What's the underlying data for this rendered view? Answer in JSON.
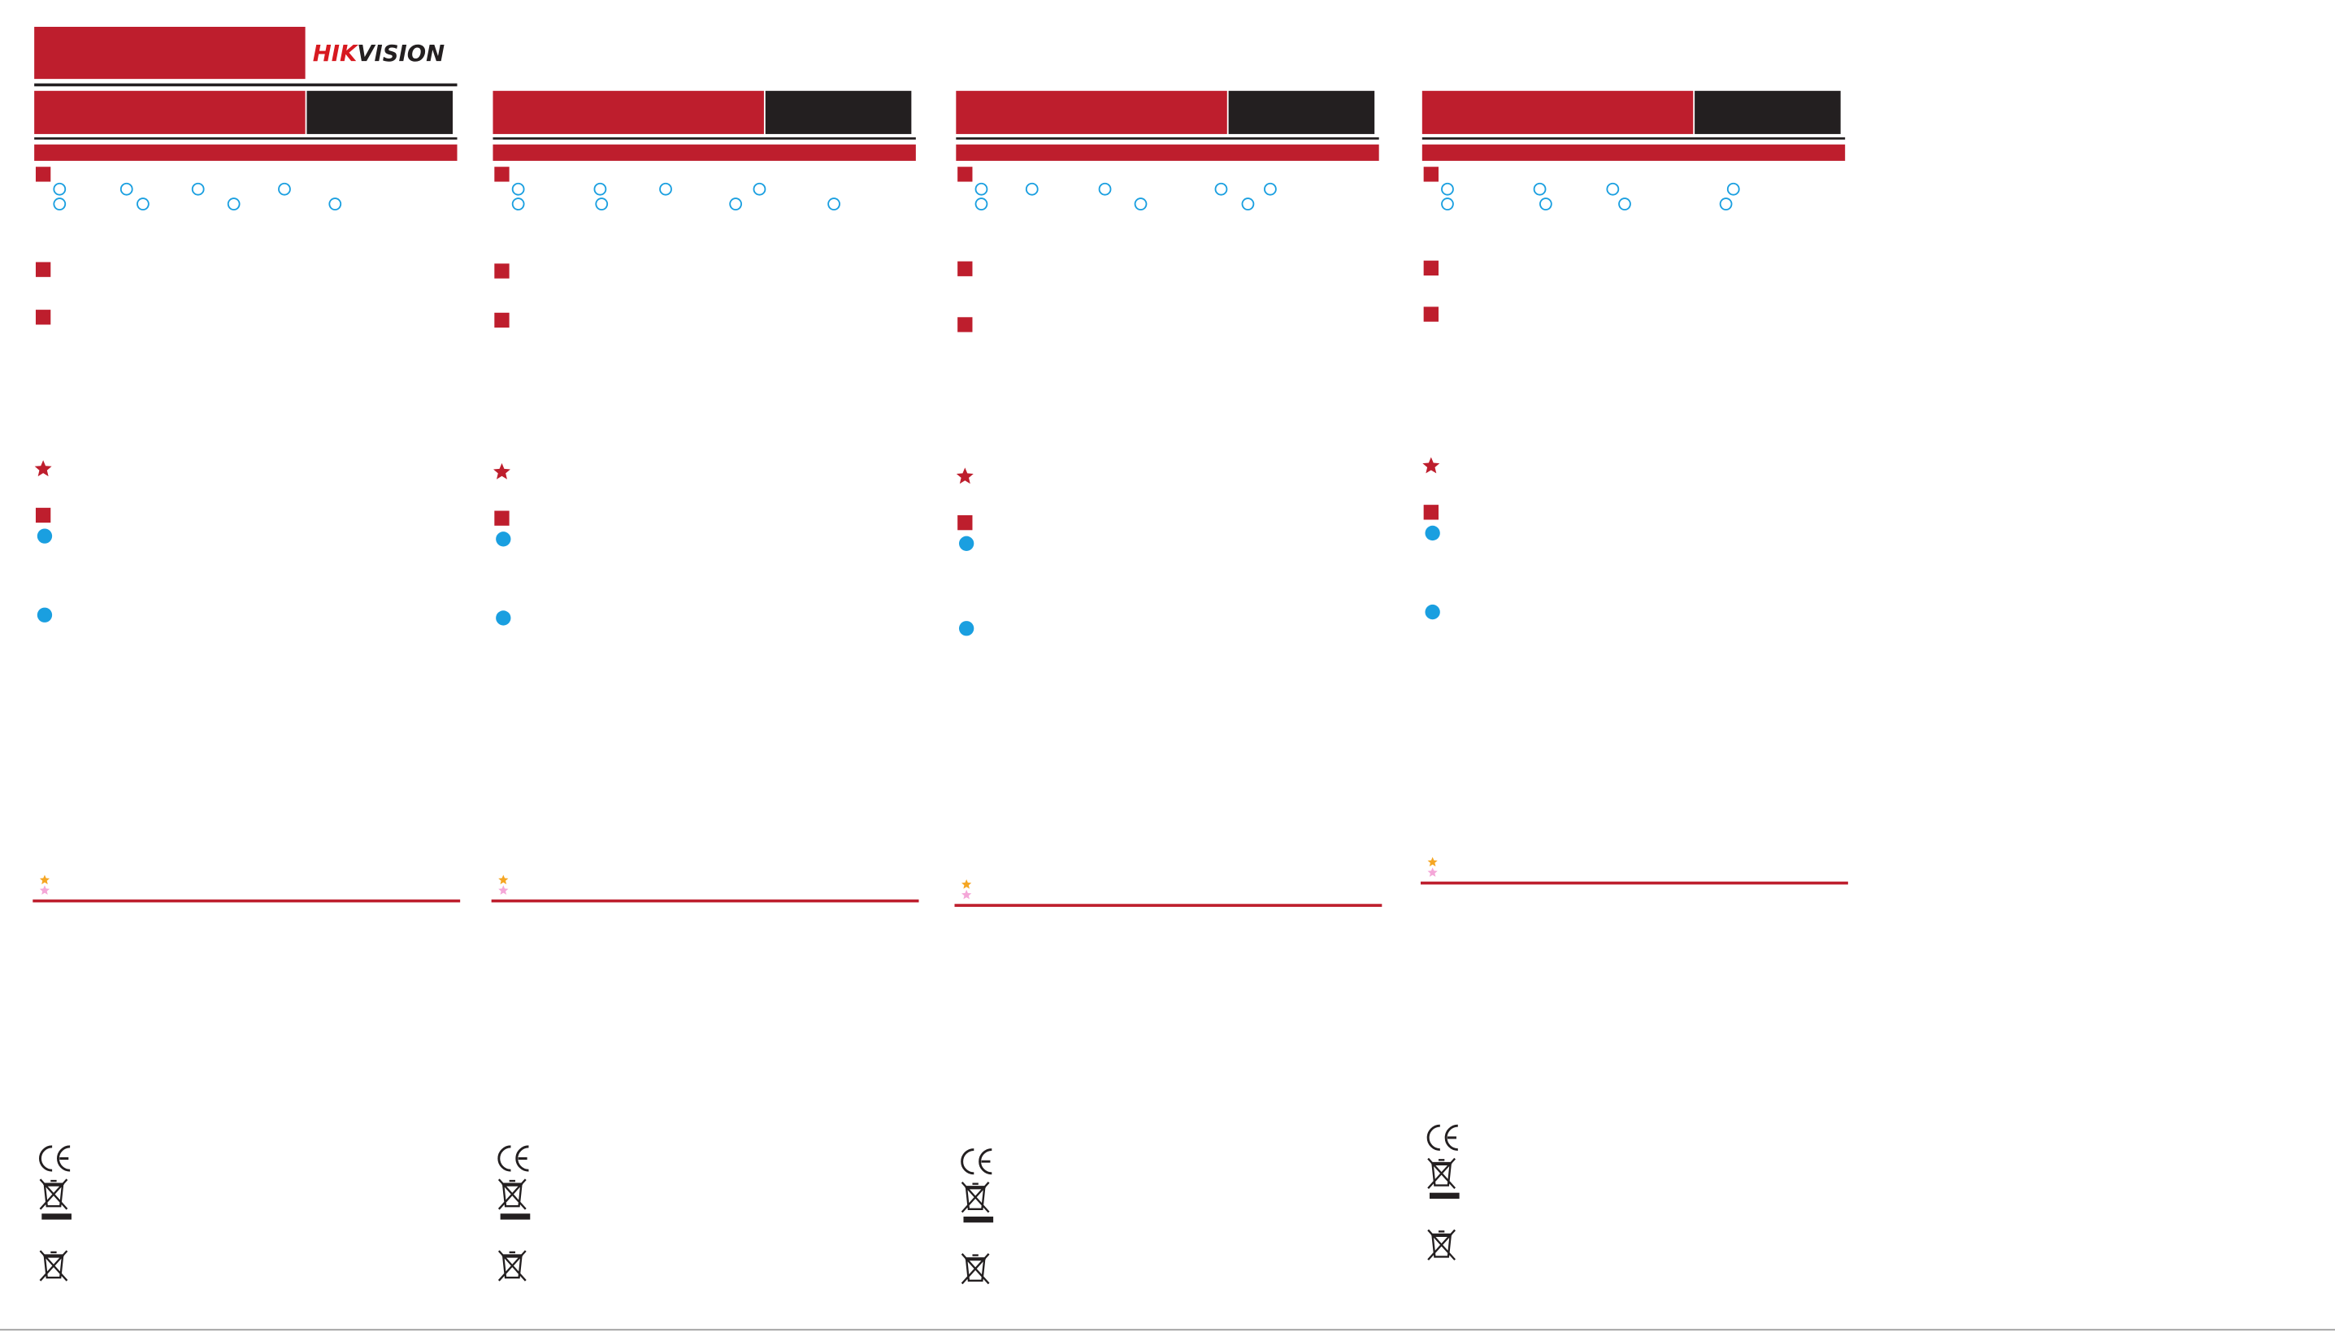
{
  "header": {
    "logo": {
      "brand": "HIK",
      "suffix": "VISION"
    }
  }
}
